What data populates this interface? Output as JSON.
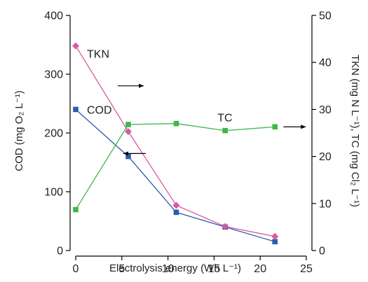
{
  "chart_data": {
    "type": "line",
    "xlabel": "Electrolysis energy (Wh L⁻¹)",
    "ylabel_left": "COD (mg O₂ L⁻¹)",
    "ylabel_right": "TKN (mg N L⁻¹), TC (mg Cl₂ L⁻¹)",
    "xlim": [
      0,
      25
    ],
    "ylim_left": [
      0,
      400
    ],
    "ylim_right": [
      0,
      50
    ],
    "x_ticks": [
      0,
      5,
      10,
      15,
      20,
      25
    ],
    "y_left_ticks": [
      0,
      100,
      200,
      300,
      400
    ],
    "y_right_ticks": [
      0,
      10,
      20,
      30,
      40,
      50
    ],
    "grid": false,
    "legend": "inline labels",
    "series": [
      {
        "name": "COD",
        "axis": "left",
        "marker": "square",
        "color": "#2E5AAC",
        "x": [
          0,
          5.7,
          10.9,
          16.2,
          21.6
        ],
        "values": [
          240,
          160,
          65,
          40,
          15
        ]
      },
      {
        "name": "TKN",
        "axis": "right",
        "marker": "diamond",
        "color": "#D85AA0",
        "x": [
          0,
          5.7,
          10.9,
          16.2,
          21.6
        ],
        "values": [
          43.5,
          25.3,
          9.6,
          5.1,
          3.0
        ]
      },
      {
        "name": "TC",
        "axis": "right",
        "marker": "square",
        "color": "#3DB84A",
        "x": [
          0,
          5.7,
          10.9,
          16.2,
          21.6
        ],
        "values": [
          8.7,
          26.8,
          27.0,
          25.5,
          26.3
        ]
      }
    ],
    "annotations": [
      {
        "text": "TKN",
        "series": "TKN",
        "arrow": "right"
      },
      {
        "text": "COD",
        "series": "COD",
        "arrow": "left"
      },
      {
        "text": "TC",
        "series": "TC",
        "arrow": "right"
      }
    ]
  }
}
